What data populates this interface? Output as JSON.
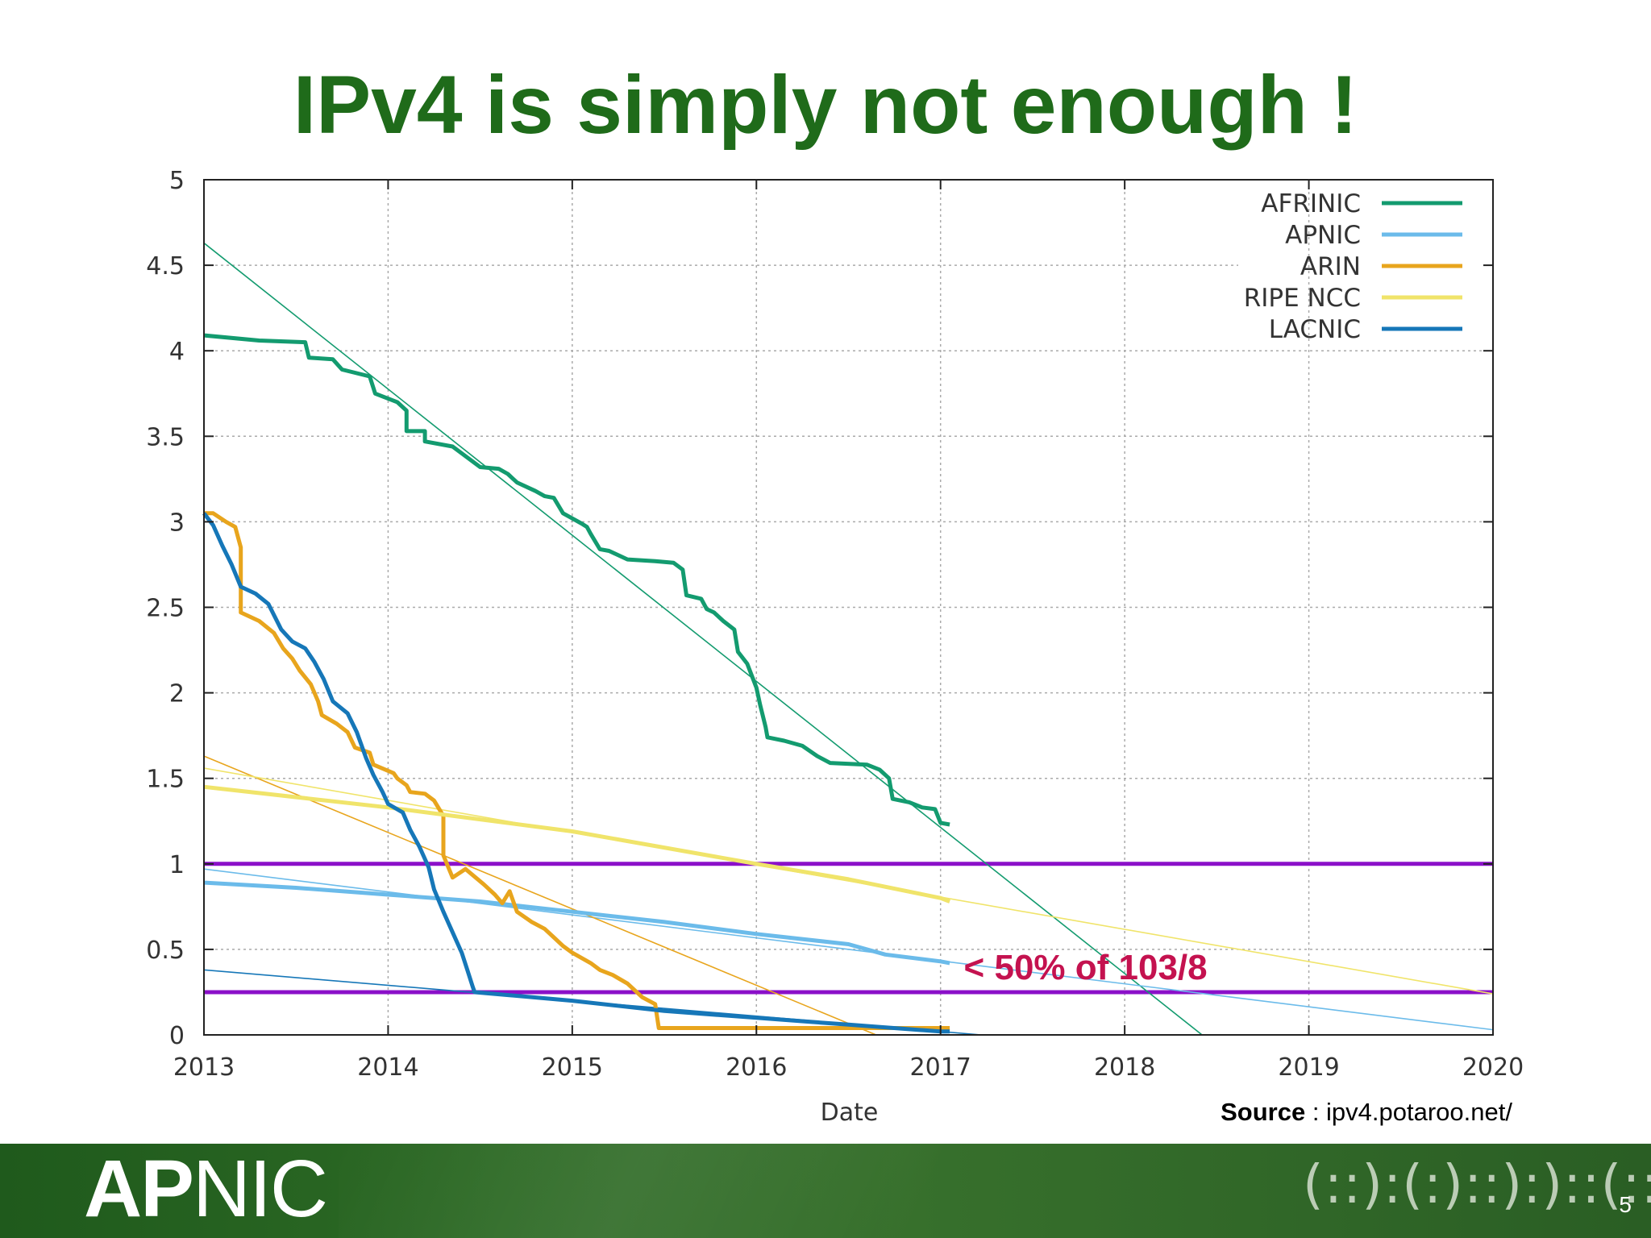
{
  "slide": {
    "title": "IPv4 is simply not enough !",
    "source_label": "Source",
    "source_sep": " : ",
    "source_text": "ipv4.potaroo.net/",
    "footer_logo_bold": "AP",
    "footer_logo_light": "NIC",
    "footer_mark": "(::):(:)::):)::(::)",
    "page_number": "5"
  },
  "colors": {
    "title": "#1f6b1a",
    "afrinic": "#139b6f",
    "apnic": "#6bbbea",
    "arin": "#e8a51d",
    "ripe": "#f0e46a",
    "lacnic": "#1677b8",
    "threshold": "#8b10c9",
    "annotation": "#c4124f"
  },
  "chart_data": {
    "type": "line",
    "xlabel": "Date",
    "ylabel": "",
    "xlim": [
      2013,
      2020
    ],
    "ylim": [
      0,
      5
    ],
    "x_ticks": [
      "2013",
      "2014",
      "2015",
      "2016",
      "2017",
      "2018",
      "2019",
      "2020"
    ],
    "y_ticks": [
      "0",
      "0.5",
      "1",
      "1.5",
      "2",
      "2.5",
      "3",
      "3.5",
      "4",
      "4.5",
      "5"
    ],
    "grid": true,
    "legend_position": "top-right",
    "series": [
      {
        "name": "AFRINIC",
        "key": "afrinic",
        "points": [
          [
            2013.0,
            4.09
          ],
          [
            2013.3,
            4.06
          ],
          [
            2013.55,
            4.05
          ],
          [
            2013.57,
            3.96
          ],
          [
            2013.7,
            3.95
          ],
          [
            2013.75,
            3.89
          ],
          [
            2013.9,
            3.85
          ],
          [
            2013.93,
            3.75
          ],
          [
            2014.05,
            3.7
          ],
          [
            2014.1,
            3.65
          ],
          [
            2014.1,
            3.53
          ],
          [
            2014.2,
            3.53
          ],
          [
            2014.2,
            3.47
          ],
          [
            2014.35,
            3.44
          ],
          [
            2014.4,
            3.4
          ],
          [
            2014.45,
            3.36
          ],
          [
            2014.5,
            3.32
          ],
          [
            2014.6,
            3.31
          ],
          [
            2014.65,
            3.28
          ],
          [
            2014.7,
            3.23
          ],
          [
            2014.8,
            3.18
          ],
          [
            2014.85,
            3.15
          ],
          [
            2014.9,
            3.14
          ],
          [
            2014.95,
            3.05
          ],
          [
            2015.0,
            3.02
          ],
          [
            2015.05,
            2.99
          ],
          [
            2015.08,
            2.97
          ],
          [
            2015.1,
            2.93
          ],
          [
            2015.15,
            2.84
          ],
          [
            2015.2,
            2.83
          ],
          [
            2015.3,
            2.78
          ],
          [
            2015.45,
            2.77
          ],
          [
            2015.55,
            2.76
          ],
          [
            2015.6,
            2.72
          ],
          [
            2015.62,
            2.57
          ],
          [
            2015.7,
            2.55
          ],
          [
            2015.73,
            2.49
          ],
          [
            2015.77,
            2.47
          ],
          [
            2015.82,
            2.42
          ],
          [
            2015.88,
            2.37
          ],
          [
            2015.9,
            2.24
          ],
          [
            2015.95,
            2.17
          ],
          [
            2016.0,
            2.03
          ],
          [
            2016.02,
            1.93
          ],
          [
            2016.05,
            1.8
          ],
          [
            2016.06,
            1.74
          ],
          [
            2016.15,
            1.72
          ],
          [
            2016.25,
            1.69
          ],
          [
            2016.33,
            1.63
          ],
          [
            2016.4,
            1.59
          ],
          [
            2016.6,
            1.58
          ],
          [
            2016.67,
            1.55
          ],
          [
            2016.72,
            1.5
          ],
          [
            2016.74,
            1.38
          ],
          [
            2016.83,
            1.36
          ],
          [
            2016.9,
            1.33
          ],
          [
            2016.97,
            1.32
          ],
          [
            2017.0,
            1.24
          ],
          [
            2017.05,
            1.23
          ]
        ]
      },
      {
        "name": "APNIC",
        "key": "apnic",
        "points": [
          [
            2013.0,
            0.89
          ],
          [
            2013.5,
            0.86
          ],
          [
            2014.0,
            0.82
          ],
          [
            2014.5,
            0.78
          ],
          [
            2015.0,
            0.72
          ],
          [
            2015.5,
            0.66
          ],
          [
            2016.0,
            0.59
          ],
          [
            2016.5,
            0.53
          ],
          [
            2016.7,
            0.47
          ],
          [
            2017.0,
            0.43
          ],
          [
            2017.05,
            0.42
          ]
        ]
      },
      {
        "name": "ARIN",
        "key": "arin",
        "points": [
          [
            2013.0,
            3.05
          ],
          [
            2013.05,
            3.05
          ],
          [
            2013.12,
            3.0
          ],
          [
            2013.17,
            2.97
          ],
          [
            2013.2,
            2.85
          ],
          [
            2013.2,
            2.47
          ],
          [
            2013.3,
            2.42
          ],
          [
            2013.38,
            2.35
          ],
          [
            2013.43,
            2.26
          ],
          [
            2013.48,
            2.2
          ],
          [
            2013.52,
            2.13
          ],
          [
            2013.58,
            2.05
          ],
          [
            2013.62,
            1.95
          ],
          [
            2013.64,
            1.87
          ],
          [
            2013.72,
            1.82
          ],
          [
            2013.78,
            1.77
          ],
          [
            2013.82,
            1.68
          ],
          [
            2013.9,
            1.65
          ],
          [
            2013.92,
            1.58
          ],
          [
            2014.03,
            1.53
          ],
          [
            2014.05,
            1.5
          ],
          [
            2014.1,
            1.46
          ],
          [
            2014.12,
            1.42
          ],
          [
            2014.2,
            1.41
          ],
          [
            2014.25,
            1.37
          ],
          [
            2014.3,
            1.28
          ],
          [
            2014.3,
            1.05
          ],
          [
            2014.35,
            0.92
          ],
          [
            2014.42,
            0.97
          ],
          [
            2014.52,
            0.88
          ],
          [
            2014.58,
            0.82
          ],
          [
            2014.62,
            0.77
          ],
          [
            2014.66,
            0.84
          ],
          [
            2014.7,
            0.72
          ],
          [
            2014.78,
            0.66
          ],
          [
            2014.85,
            0.62
          ],
          [
            2014.9,
            0.57
          ],
          [
            2014.95,
            0.52
          ],
          [
            2015.0,
            0.48
          ],
          [
            2015.1,
            0.42
          ],
          [
            2015.15,
            0.38
          ],
          [
            2015.22,
            0.35
          ],
          [
            2015.3,
            0.3
          ],
          [
            2015.38,
            0.22
          ],
          [
            2015.45,
            0.18
          ],
          [
            2015.47,
            0.04
          ],
          [
            2016.0,
            0.04
          ],
          [
            2016.5,
            0.04
          ],
          [
            2017.0,
            0.04
          ],
          [
            2017.05,
            0.04
          ]
        ]
      },
      {
        "name": "RIPE NCC",
        "key": "ripe",
        "points": [
          [
            2013.0,
            1.45
          ],
          [
            2014.0,
            1.33
          ],
          [
            2015.0,
            1.19
          ],
          [
            2016.0,
            1.0
          ],
          [
            2016.5,
            0.91
          ],
          [
            2017.0,
            0.8
          ],
          [
            2017.05,
            0.78
          ]
        ]
      },
      {
        "name": "LACNIC",
        "key": "lacnic",
        "points": [
          [
            2013.0,
            3.05
          ],
          [
            2013.05,
            2.98
          ],
          [
            2013.1,
            2.86
          ],
          [
            2013.15,
            2.75
          ],
          [
            2013.2,
            2.62
          ],
          [
            2013.28,
            2.58
          ],
          [
            2013.35,
            2.52
          ],
          [
            2013.42,
            2.37
          ],
          [
            2013.48,
            2.3
          ],
          [
            2013.55,
            2.26
          ],
          [
            2013.6,
            2.18
          ],
          [
            2013.65,
            2.08
          ],
          [
            2013.7,
            1.95
          ],
          [
            2013.78,
            1.88
          ],
          [
            2013.83,
            1.77
          ],
          [
            2013.88,
            1.62
          ],
          [
            2013.92,
            1.52
          ],
          [
            2013.97,
            1.42
          ],
          [
            2014.0,
            1.35
          ],
          [
            2014.08,
            1.3
          ],
          [
            2014.12,
            1.2
          ],
          [
            2014.17,
            1.1
          ],
          [
            2014.22,
            0.98
          ],
          [
            2014.25,
            0.85
          ],
          [
            2014.3,
            0.72
          ],
          [
            2014.35,
            0.6
          ],
          [
            2014.4,
            0.48
          ],
          [
            2014.43,
            0.38
          ],
          [
            2014.46,
            0.28
          ],
          [
            2014.47,
            0.25
          ],
          [
            2015.0,
            0.2
          ],
          [
            2015.5,
            0.14
          ],
          [
            2016.0,
            0.1
          ],
          [
            2016.5,
            0.06
          ],
          [
            2017.0,
            0.02
          ],
          [
            2017.05,
            0.02
          ]
        ]
      }
    ],
    "trend_lines": [
      {
        "key": "afrinic",
        "from": [
          2013.0,
          4.63
        ],
        "to": [
          2018.42,
          0.0
        ]
      },
      {
        "key": "apnic",
        "from": [
          2013.0,
          0.97
        ],
        "to": [
          2020.0,
          0.03
        ]
      },
      {
        "key": "arin",
        "from": [
          2013.0,
          1.63
        ],
        "to": [
          2016.65,
          0.0
        ]
      },
      {
        "key": "ripe",
        "from": [
          2013.0,
          1.56
        ],
        "to": [
          2020.0,
          0.24
        ]
      },
      {
        "key": "lacnic",
        "from": [
          2013.0,
          0.38
        ],
        "to": [
          2017.22,
          0.0
        ]
      }
    ],
    "reference_lines": [
      {
        "key": "threshold",
        "y": 1.0
      },
      {
        "key": "threshold",
        "y": 0.25
      }
    ],
    "annotation": {
      "text": "< 50% of 103/8",
      "x": 2017.1,
      "y": 0.4
    }
  }
}
